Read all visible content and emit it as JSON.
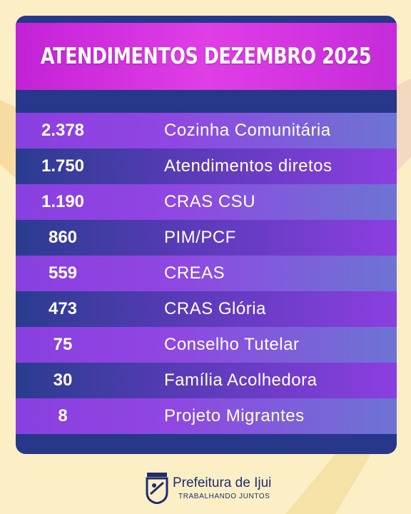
{
  "header": {
    "title": "ATENDIMENTOS DEZEMBRO 2025"
  },
  "table": {
    "rows": [
      [
        "2.378",
        "Cozinha Comunitária"
      ],
      [
        "1.750",
        "Atendimentos diretos"
      ],
      [
        "1.190",
        "CRAS CSU"
      ],
      [
        "860",
        "PIM/PCF"
      ],
      [
        "559",
        "CREAS"
      ],
      [
        "473",
        "CRAS Glória"
      ],
      [
        "75",
        "Conselho Tutelar"
      ],
      [
        "30",
        "Família Acolhedora"
      ],
      [
        "8",
        "Projeto Migrantes"
      ]
    ]
  },
  "footer": {
    "brand": "Prefeitura de Ijui",
    "motto": "TRABALHANDO JUNTOS"
  }
}
